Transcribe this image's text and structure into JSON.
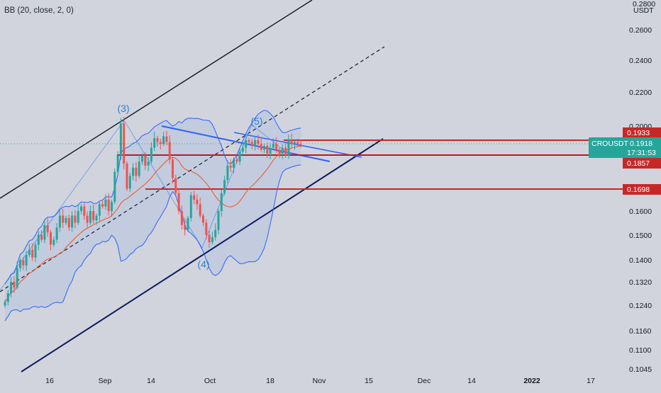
{
  "indicator": {
    "label": "BB (20, close, 2, 0)"
  },
  "price_axis": {
    "currency": "USDT",
    "top_partial": "0.2800",
    "ticks": [
      "0.2600",
      "0.2400",
      "0.2200",
      "0.2000",
      "0.1600",
      "0.1500",
      "0.1400",
      "0.1320",
      "0.1240",
      "0.1160",
      "0.1100",
      "0.1045"
    ]
  },
  "time_axis": {
    "ticks": [
      "16",
      "Sep",
      "14",
      "Oct",
      "18",
      "Nov",
      "15",
      "Dec",
      "14",
      "2022",
      "17"
    ]
  },
  "price_labels": {
    "symbol": "CROUSDT",
    "resistance": "0.1933",
    "current_price": "0.1918",
    "countdown": "17:31:53",
    "support_1": "0.1857",
    "support_2": "0.1698"
  },
  "wave_labels": [
    "(3)",
    "(4)",
    "(5)"
  ],
  "colors": {
    "background": "#d1d4dc",
    "candle_up": "#26a69a",
    "candle_down": "#ef5350",
    "bb_band": "#2962ff",
    "bb_basis": "#f4511e",
    "level_line": "#c62828",
    "symbol_badge": "#26a69a",
    "wave_label": "#2f7fd1"
  },
  "chart_data": {
    "type": "candlestick",
    "title": "",
    "y_scale": "log",
    "ylim": [
      0.1045,
      0.28
    ],
    "x_ticks": [
      "16",
      "Sep",
      "14",
      "Oct",
      "18",
      "Nov",
      "15",
      "Dec",
      "14",
      "2022",
      "17"
    ],
    "y_ticks": [
      0.26,
      0.24,
      0.22,
      0.2,
      0.16,
      0.15,
      0.14,
      0.132,
      0.124,
      0.116,
      0.11,
      0.1045
    ],
    "indicator": "BB (20, close, 2, 0)",
    "horizontal_levels": [
      0.1933,
      0.1857,
      0.1698
    ],
    "last_price": 0.1918,
    "closes": [
      0.125,
      0.128,
      0.132,
      0.13,
      0.137,
      0.14,
      0.138,
      0.142,
      0.144,
      0.141,
      0.146,
      0.15,
      0.148,
      0.154,
      0.151,
      0.146,
      0.148,
      0.153,
      0.158,
      0.155,
      0.157,
      0.153,
      0.158,
      0.155,
      0.16,
      0.162,
      0.158,
      0.155,
      0.16,
      0.156,
      0.158,
      0.163,
      0.162,
      0.165,
      0.16,
      0.164,
      0.178,
      0.186,
      0.203,
      0.182,
      0.17,
      0.176,
      0.18,
      0.176,
      0.183,
      0.186,
      0.181,
      0.183,
      0.19,
      0.195,
      0.193,
      0.192,
      0.196,
      0.193,
      0.184,
      0.175,
      0.168,
      0.16,
      0.154,
      0.152,
      0.157,
      0.167,
      0.165,
      0.163,
      0.158,
      0.155,
      0.15,
      0.147,
      0.149,
      0.152,
      0.16,
      0.168,
      0.174,
      0.181,
      0.18,
      0.184,
      0.183,
      0.188,
      0.19,
      0.194,
      0.193,
      0.191,
      0.194,
      0.192,
      0.189,
      0.191,
      0.187,
      0.19,
      0.192,
      0.189,
      0.187,
      0.19,
      0.186,
      0.194,
      0.192,
      0.193,
      0.192,
      0.1918
    ]
  }
}
